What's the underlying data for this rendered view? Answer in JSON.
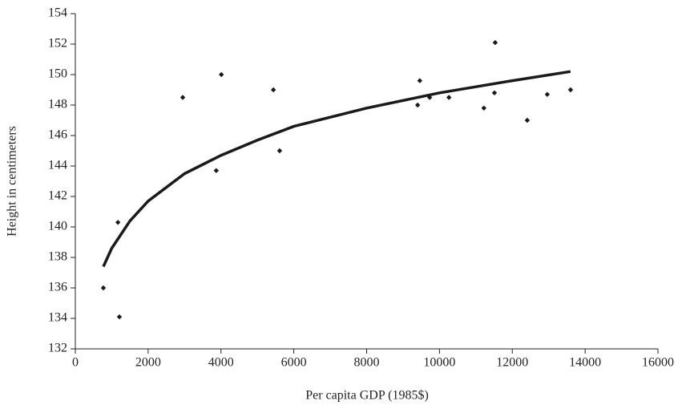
{
  "chart_data": {
    "type": "scatter",
    "xlabel": "Per capita GDP (1985$)",
    "ylabel": "Height in centimeters",
    "xlim": [
      0,
      16000
    ],
    "xticks": [
      0,
      2000,
      4000,
      6000,
      8000,
      10000,
      12000,
      14000,
      16000
    ],
    "ylim": [
      132,
      154
    ],
    "yticks": [
      132,
      134,
      136,
      138,
      140,
      142,
      144,
      146,
      148,
      150,
      152,
      154
    ],
    "grid": false,
    "series": [
      {
        "style": "markers",
        "color": "#1a1a1a",
        "x": [
          770,
          1170,
          1210,
          2950,
          3870,
          4010,
          5440,
          5610,
          9400,
          9460,
          9730,
          10260,
          11220,
          11510,
          11530,
          12410,
          12960,
          13600
        ],
        "values": [
          136.0,
          140.3,
          134.1,
          148.5,
          143.7,
          150.0,
          149.0,
          145.0,
          148.0,
          149.6,
          148.5,
          148.5,
          147.8,
          148.8,
          152.1,
          147.0,
          148.7,
          149.0
        ]
      },
      {
        "style": "line",
        "color": "#1a1a1a",
        "x": [
          770,
          1000,
          1500,
          2000,
          3000,
          4000,
          5000,
          6000,
          8000,
          10000,
          12000,
          13600
        ],
        "values": [
          137.4,
          138.6,
          140.4,
          141.7,
          143.5,
          144.7,
          145.7,
          146.6,
          147.8,
          148.8,
          149.6,
          150.2
        ]
      }
    ]
  }
}
